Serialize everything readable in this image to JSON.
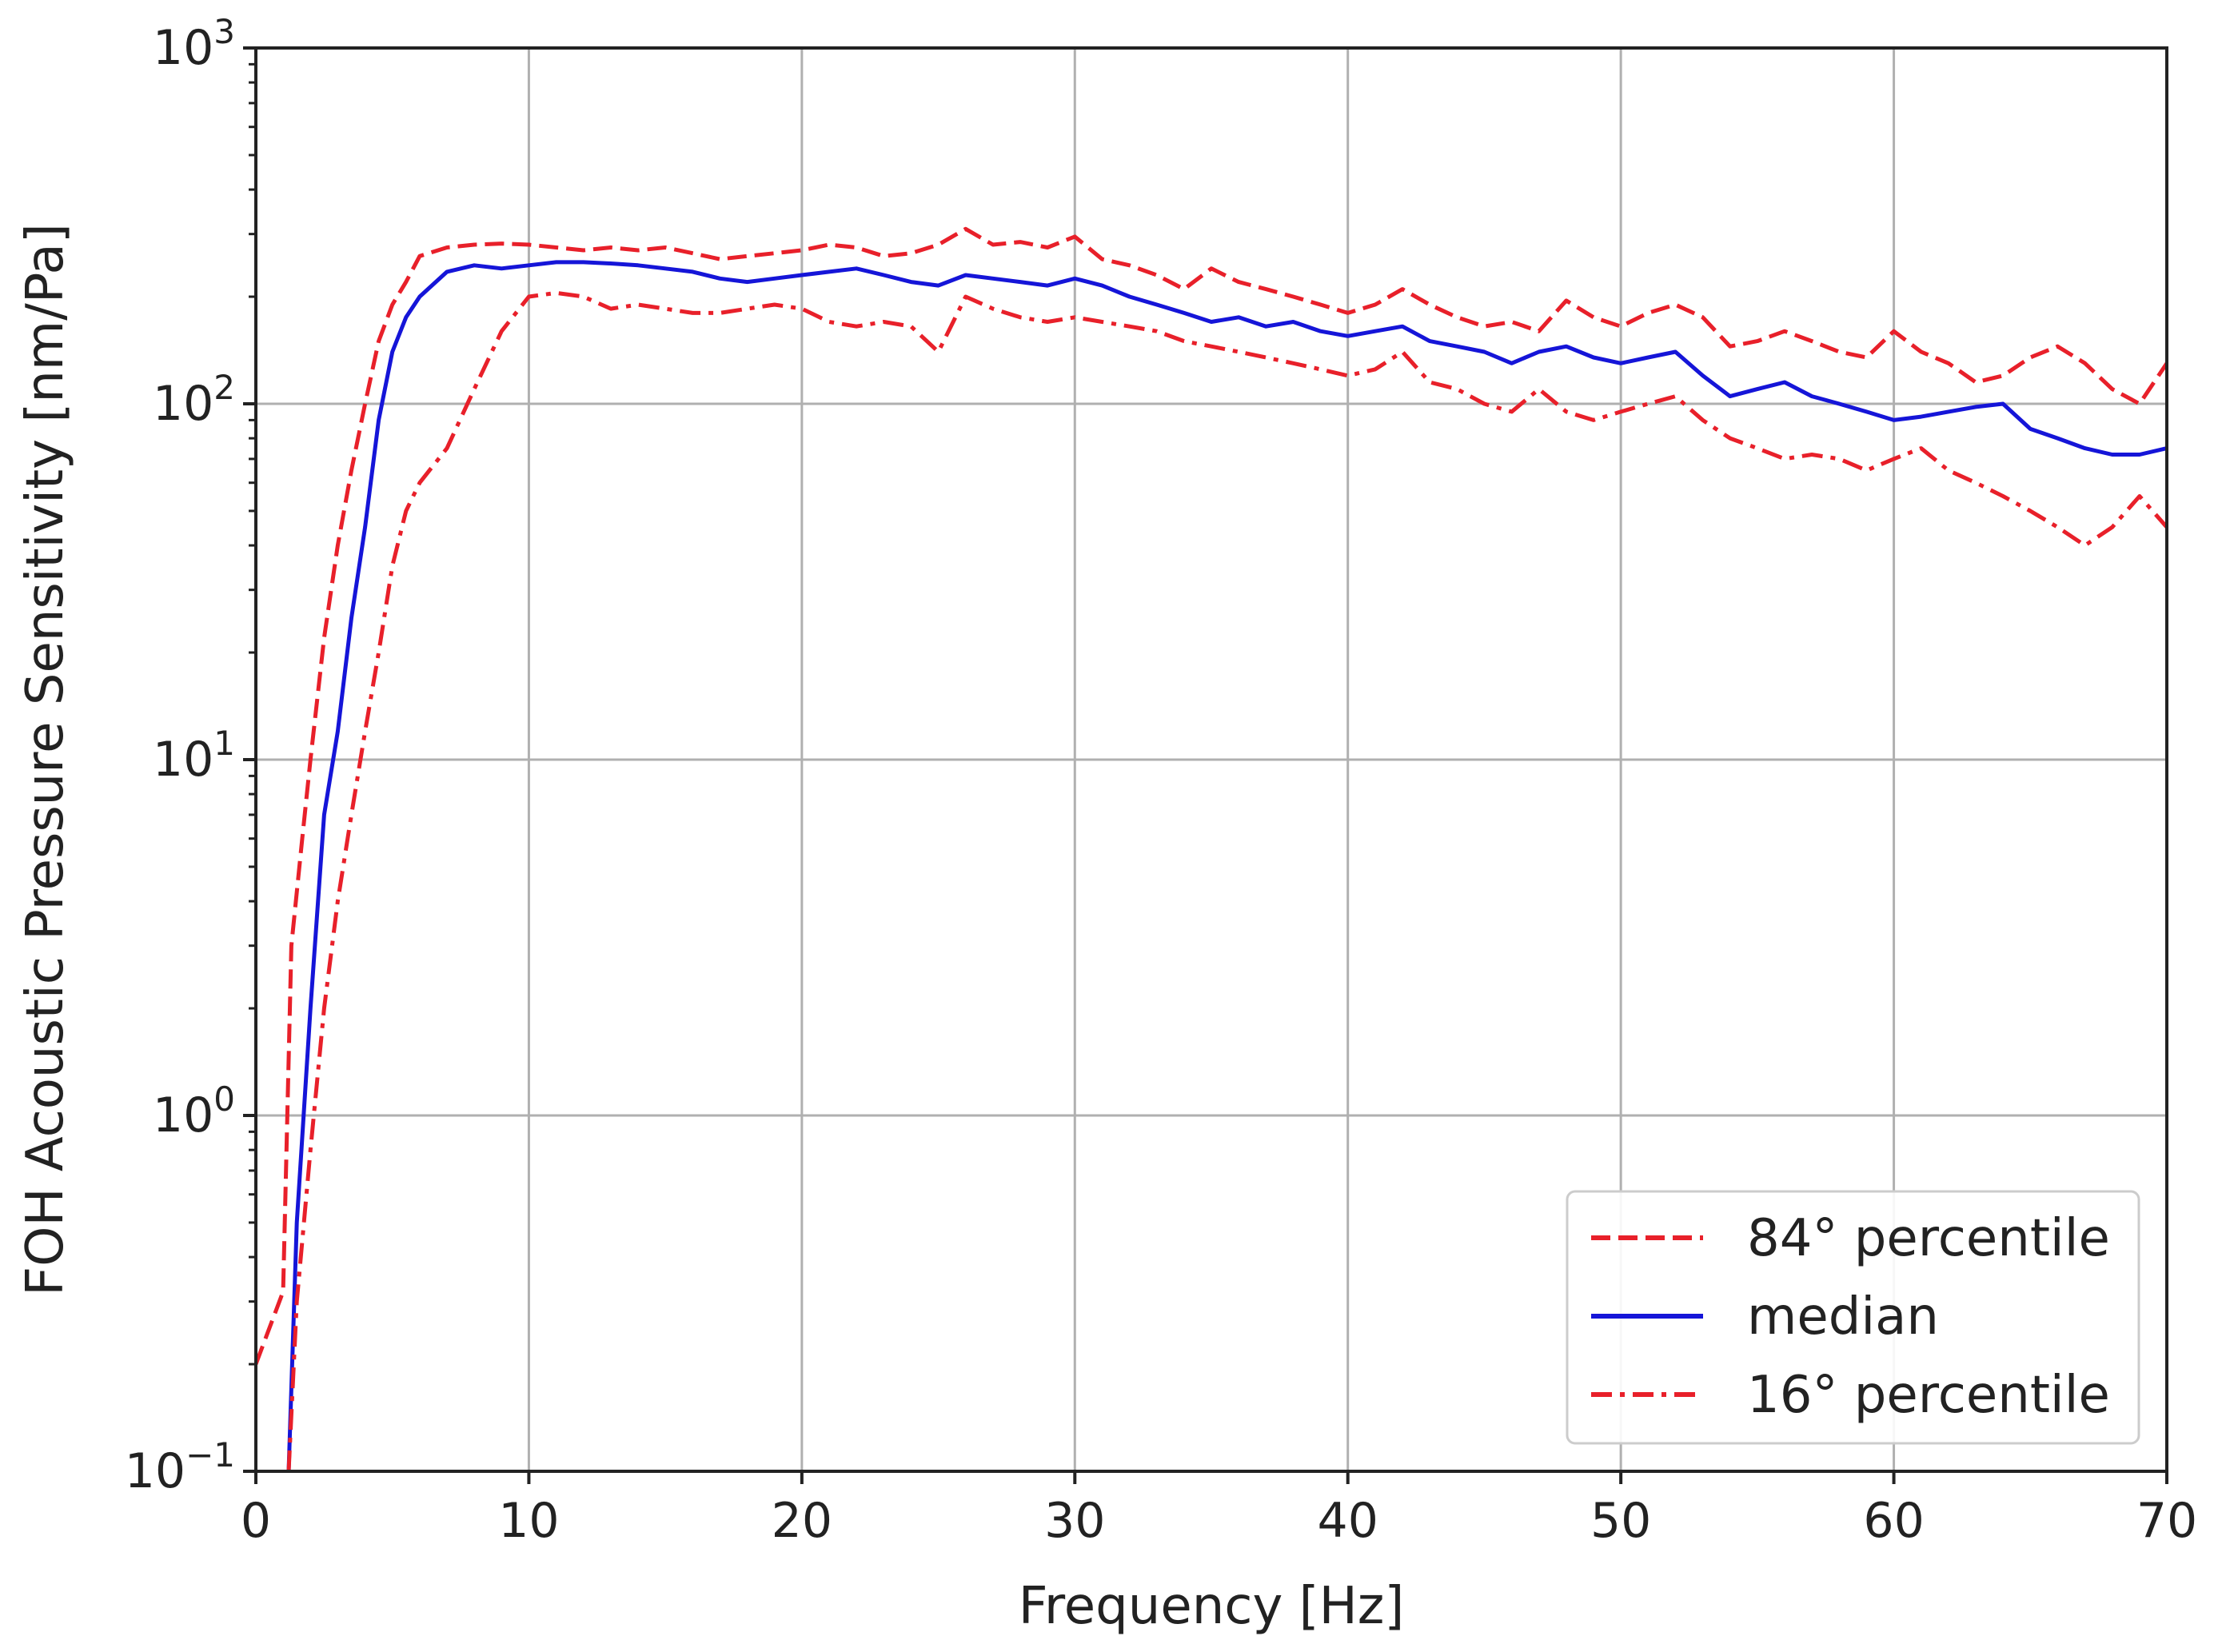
{
  "chart_data": {
    "type": "line",
    "title": "",
    "xlabel": "Frequency [Hz]",
    "ylabel": "FOH Acoustic Pressure Sensitivity [nm/Pa]",
    "xlim": [
      0,
      70
    ],
    "ylim": [
      0.1,
      1000
    ],
    "yscale": "log",
    "grid": true,
    "legend_position": "lower-right",
    "x_ticks": [
      {
        "value": 0,
        "label": "0"
      },
      {
        "value": 10,
        "label": "10"
      },
      {
        "value": 20,
        "label": "20"
      },
      {
        "value": 30,
        "label": "30"
      },
      {
        "value": 40,
        "label": "40"
      },
      {
        "value": 50,
        "label": "50"
      },
      {
        "value": 60,
        "label": "60"
      },
      {
        "value": 70,
        "label": "70"
      }
    ],
    "y_ticks": [
      {
        "value": 0.1,
        "base": "10",
        "exp": "−1"
      },
      {
        "value": 1,
        "base": "10",
        "exp": "0"
      },
      {
        "value": 10,
        "base": "10",
        "exp": "1"
      },
      {
        "value": 100,
        "base": "10",
        "exp": "2"
      },
      {
        "value": 1000,
        "base": "10",
        "exp": "3"
      }
    ],
    "series": [
      {
        "name": "84° percentile",
        "color": "#e8202a",
        "dash": "dashed",
        "x": [
          0,
          1,
          1.3,
          1.7,
          2,
          2.5,
          3,
          3.5,
          4,
          4.5,
          5,
          5.5,
          6,
          7,
          8,
          9,
          10,
          11,
          12,
          13,
          14,
          15,
          16,
          17,
          18,
          19,
          20,
          21,
          22,
          23,
          24,
          25,
          26,
          27,
          28,
          29,
          30,
          31,
          32,
          33,
          34,
          35,
          36,
          37,
          38,
          39,
          40,
          41,
          42,
          43,
          44,
          45,
          46,
          47,
          48,
          49,
          50,
          51,
          52,
          53,
          54,
          55,
          56,
          57,
          58,
          59,
          60,
          61,
          62,
          63,
          64,
          65,
          66,
          67,
          68,
          69,
          70
        ],
        "y": [
          0.2,
          0.32,
          3.0,
          6.0,
          10,
          22,
          40,
          65,
          100,
          150,
          190,
          220,
          260,
          275,
          280,
          282,
          280,
          275,
          270,
          275,
          270,
          275,
          265,
          255,
          260,
          265,
          270,
          280,
          275,
          260,
          265,
          280,
          310,
          280,
          285,
          275,
          295,
          255,
          245,
          230,
          210,
          240,
          220,
          210,
          200,
          190,
          180,
          190,
          210,
          190,
          175,
          165,
          170,
          160,
          195,
          175,
          165,
          180,
          190,
          175,
          145,
          150,
          160,
          150,
          140,
          135,
          160,
          140,
          130,
          115,
          120,
          135,
          145,
          130,
          110,
          100,
          130
        ]
      },
      {
        "name": "median",
        "color": "#1515d8",
        "dash": "solid",
        "x": [
          1.2,
          1.5,
          2,
          2.5,
          3,
          3.5,
          4,
          4.5,
          5,
          5.5,
          6,
          7,
          8,
          9,
          10,
          11,
          12,
          13,
          14,
          15,
          16,
          17,
          18,
          19,
          20,
          21,
          22,
          23,
          24,
          25,
          26,
          27,
          28,
          29,
          30,
          31,
          32,
          33,
          34,
          35,
          36,
          37,
          38,
          39,
          40,
          41,
          42,
          43,
          44,
          45,
          46,
          47,
          48,
          49,
          50,
          51,
          52,
          53,
          54,
          55,
          56,
          57,
          58,
          59,
          60,
          61,
          62,
          63,
          64,
          65,
          66,
          67,
          68,
          69,
          70
        ],
        "y": [
          0.1,
          0.5,
          2.0,
          7.0,
          12,
          25,
          45,
          90,
          140,
          175,
          200,
          235,
          245,
          240,
          245,
          250,
          250,
          248,
          245,
          240,
          235,
          225,
          220,
          225,
          230,
          235,
          240,
          230,
          220,
          215,
          230,
          225,
          220,
          215,
          225,
          215,
          200,
          190,
          180,
          170,
          175,
          165,
          170,
          160,
          155,
          160,
          165,
          150,
          145,
          140,
          130,
          140,
          145,
          135,
          130,
          135,
          140,
          120,
          105,
          110,
          115,
          105,
          100,
          95,
          90,
          92,
          95,
          98,
          100,
          85,
          80,
          75,
          72,
          72,
          75
        ]
      },
      {
        "name": "16° percentile",
        "color": "#e8202a",
        "dash": "dashdot",
        "x": [
          1.2,
          1.5,
          2,
          2.5,
          3,
          3.5,
          4,
          4.5,
          5,
          5.5,
          6,
          7,
          8,
          9,
          10,
          11,
          12,
          13,
          14,
          15,
          16,
          17,
          18,
          19,
          20,
          21,
          22,
          23,
          24,
          25,
          26,
          27,
          28,
          29,
          30,
          31,
          32,
          33,
          34,
          35,
          36,
          37,
          38,
          39,
          40,
          41,
          42,
          43,
          44,
          45,
          46,
          47,
          48,
          49,
          50,
          51,
          52,
          53,
          54,
          55,
          56,
          57,
          58,
          59,
          60,
          61,
          62,
          63,
          64,
          65,
          66,
          67,
          68,
          69,
          70
        ],
        "y": [
          0.1,
          0.3,
          0.8,
          2.0,
          4.0,
          7.0,
          12,
          20,
          35,
          50,
          60,
          75,
          110,
          160,
          200,
          205,
          200,
          185,
          190,
          185,
          180,
          180,
          185,
          190,
          185,
          170,
          165,
          170,
          165,
          140,
          200,
          185,
          175,
          170,
          175,
          170,
          165,
          160,
          150,
          145,
          140,
          135,
          130,
          125,
          120,
          125,
          140,
          115,
          110,
          100,
          95,
          110,
          95,
          90,
          95,
          100,
          105,
          90,
          80,
          75,
          70,
          72,
          70,
          65,
          70,
          75,
          65,
          60,
          55,
          50,
          45,
          40,
          45,
          55,
          45
        ]
      }
    ]
  }
}
